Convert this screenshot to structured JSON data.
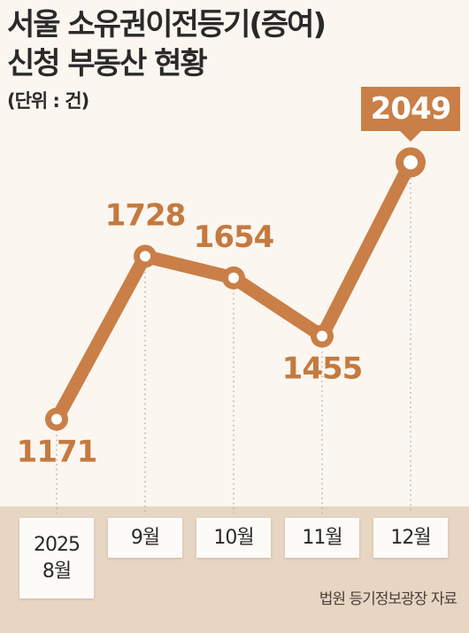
{
  "chart_data": {
    "type": "line",
    "title_lines": [
      "서울 소유권이전등기(증여)",
      "신청 부동산 현황"
    ],
    "unit_label": "(단위 : 건)",
    "categories": [
      {
        "year": "2025",
        "month": "8월"
      },
      {
        "year": "",
        "month": "9월"
      },
      {
        "year": "",
        "month": "10월"
      },
      {
        "year": "",
        "month": "11월"
      },
      {
        "year": "",
        "month": "12월"
      }
    ],
    "values": [
      1171,
      1728,
      1654,
      1455,
      2049
    ],
    "value_labels": [
      "1171",
      "1728",
      "1654",
      "1455",
      "2049"
    ],
    "highlight_index": 4,
    "ylim": [
      1000,
      2150
    ],
    "grid": false,
    "legend": "none",
    "source": "법원 등기정보광장 자료",
    "colors": {
      "line": "#c97f47",
      "label": "#c47a3f",
      "highlight_box": "#c97f47",
      "highlight_text": "#ffffff",
      "marker_fill": "#ffffff",
      "axis_band": "#e7d6c4",
      "background": "#fbf6f0"
    }
  }
}
